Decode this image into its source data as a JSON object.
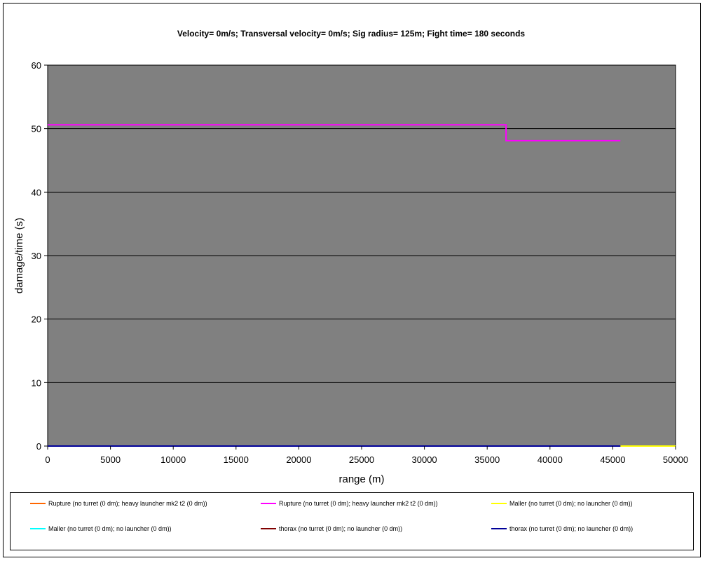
{
  "chart_data": {
    "type": "line",
    "title": "Velocity= 0m/s; Transversal velocity= 0m/s; Sig radius= 125m; Fight time= 180 seconds",
    "xlabel": "range (m)",
    "ylabel": "damage/time (s)",
    "xlim": [
      0,
      50000
    ],
    "ylim": [
      0,
      60
    ],
    "xticks": [
      "0",
      "5000",
      "10000",
      "15000",
      "20000",
      "25000",
      "30000",
      "35000",
      "40000",
      "45000",
      "50000"
    ],
    "yticks": [
      "0",
      "10",
      "20",
      "30",
      "40",
      "50",
      "60"
    ],
    "grid": "horizontal",
    "legend_position": "bottom",
    "plot_background": "#808080",
    "series": [
      {
        "name": "Rupture (no turret (0 dm); heavy launcher mk2 t2 (0 dm))",
        "color": "#FF6600",
        "x": [
          0,
          45600
        ],
        "y": [
          0,
          0
        ]
      },
      {
        "name": "Rupture (no turret (0 dm); heavy launcher mk2 t2 (0 dm))",
        "color": "#FF00FF",
        "x": [
          0,
          36500,
          36500,
          45600
        ],
        "y": [
          50.6,
          50.6,
          48.1,
          48.1
        ]
      },
      {
        "name": "Maller (no turret (0 dm); no launcher (0 dm))",
        "color": "#FFFF00",
        "x": [
          0,
          50000
        ],
        "y": [
          0,
          0
        ]
      },
      {
        "name": "Maller (no turret (0 dm); no launcher (0 dm))",
        "color": "#00FFFF",
        "x": [
          0,
          45600
        ],
        "y": [
          0,
          0
        ]
      },
      {
        "name": "thorax (no turret (0 dm); no launcher (0 dm))",
        "color": "#800000",
        "x": [
          0,
          45600
        ],
        "y": [
          0,
          0
        ]
      },
      {
        "name": "thorax (no turret (0 dm); no launcher (0 dm))",
        "color": "#000099",
        "x": [
          0,
          45600
        ],
        "y": [
          0,
          0
        ]
      }
    ]
  }
}
